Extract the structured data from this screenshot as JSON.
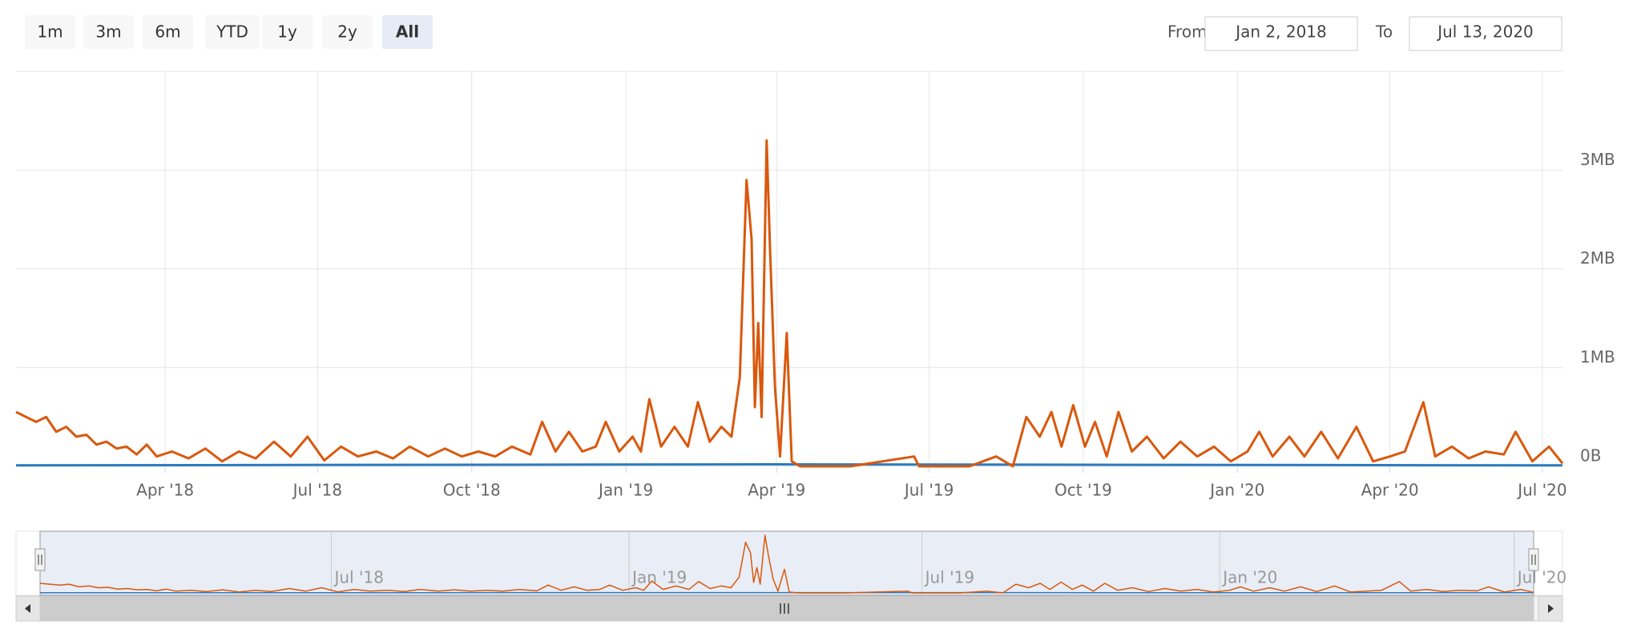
{
  "range_selector": {
    "buttons": [
      "1m",
      "3m",
      "6m",
      "YTD",
      "1y",
      "2y",
      "All"
    ],
    "selected": 6,
    "from_label": "From",
    "from": "Jan 2, 2018",
    "to_label": "To",
    "to": "Jul 13, 2020"
  },
  "chart_data": {
    "type": "line",
    "x": [
      "2018-01-02",
      "2018-01-08",
      "2018-01-14",
      "2018-01-20",
      "2018-01-26",
      "2018-02-01",
      "2018-02-07",
      "2018-02-13",
      "2018-02-19",
      "2018-02-25",
      "2018-03-03",
      "2018-03-09",
      "2018-03-15",
      "2018-03-21",
      "2018-03-27",
      "2018-04-05",
      "2018-04-15",
      "2018-04-25",
      "2018-05-05",
      "2018-05-15",
      "2018-05-25",
      "2018-06-05",
      "2018-06-15",
      "2018-06-25",
      "2018-07-05",
      "2018-07-15",
      "2018-07-25",
      "2018-08-05",
      "2018-08-15",
      "2018-08-25",
      "2018-09-05",
      "2018-09-15",
      "2018-09-25",
      "2018-10-05",
      "2018-10-15",
      "2018-10-25",
      "2018-11-05",
      "2018-11-12",
      "2018-11-20",
      "2018-11-28",
      "2018-12-06",
      "2018-12-14",
      "2018-12-20",
      "2018-12-28",
      "2019-01-05",
      "2019-01-10",
      "2019-01-15",
      "2019-01-22",
      "2019-01-30",
      "2019-02-07",
      "2019-02-13",
      "2019-02-20",
      "2019-02-27",
      "2019-03-05",
      "2019-03-10",
      "2019-03-14",
      "2019-03-17",
      "2019-03-19",
      "2019-03-21",
      "2019-03-23",
      "2019-03-26",
      "2019-03-28",
      "2019-03-31",
      "2019-04-03",
      "2019-04-07",
      "2019-04-10",
      "2019-04-15",
      "2019-05-15",
      "2019-06-22",
      "2019-06-25",
      "2019-07-25",
      "2019-08-10",
      "2019-08-20",
      "2019-08-28",
      "2019-09-05",
      "2019-09-12",
      "2019-09-18",
      "2019-09-25",
      "2019-10-02",
      "2019-10-08",
      "2019-10-15",
      "2019-10-22",
      "2019-10-30",
      "2019-11-08",
      "2019-11-18",
      "2019-11-28",
      "2019-12-08",
      "2019-12-18",
      "2019-12-28",
      "2020-01-07",
      "2020-01-14",
      "2020-01-22",
      "2020-02-01",
      "2020-02-10",
      "2020-02-20",
      "2020-03-01",
      "2020-03-12",
      "2020-03-22",
      "2020-04-01",
      "2020-04-10",
      "2020-04-21",
      "2020-04-28",
      "2020-05-08",
      "2020-05-18",
      "2020-05-28",
      "2020-06-08",
      "2020-06-15",
      "2020-06-25",
      "2020-07-05",
      "2020-07-13"
    ],
    "series": [
      {
        "color": "#d9580d",
        "values": [
          0.55,
          0.5,
          0.45,
          0.5,
          0.35,
          0.4,
          0.3,
          0.32,
          0.22,
          0.25,
          0.18,
          0.2,
          0.12,
          0.22,
          0.1,
          0.15,
          0.08,
          0.18,
          0.05,
          0.15,
          0.08,
          0.25,
          0.1,
          0.3,
          0.06,
          0.2,
          0.1,
          0.15,
          0.08,
          0.2,
          0.1,
          0.18,
          0.1,
          0.15,
          0.1,
          0.2,
          0.12,
          0.45,
          0.15,
          0.35,
          0.15,
          0.2,
          0.45,
          0.15,
          0.3,
          0.15,
          0.68,
          0.2,
          0.4,
          0.2,
          0.65,
          0.25,
          0.4,
          0.3,
          0.9,
          2.9,
          2.3,
          0.6,
          1.45,
          0.5,
          3.3,
          2.2,
          0.8,
          0.1,
          1.35,
          0.05,
          0,
          0,
          0.1,
          0,
          0,
          0.1,
          0,
          0.5,
          0.3,
          0.55,
          0.2,
          0.62,
          0.2,
          0.45,
          0.1,
          0.55,
          0.15,
          0.3,
          0.08,
          0.25,
          0.1,
          0.2,
          0.05,
          0.15,
          0.35,
          0.1,
          0.3,
          0.1,
          0.35,
          0.08,
          0.4,
          0.05,
          0.1,
          0.15,
          0.65,
          0.1,
          0.2,
          0.08,
          0.15,
          0.12,
          0.35,
          0.05,
          0.2,
          0.03
        ]
      },
      {
        "color": "#2b7bbf",
        "x": [
          "2018-01-02",
          "2019-03-26",
          "2020-07-13"
        ],
        "values": [
          0.01,
          0.02,
          0.01
        ]
      }
    ],
    "xlim": [
      "2018-01-02",
      "2020-07-13"
    ],
    "xticks": [
      {
        "value": "2018-04-01",
        "label": "Apr '18"
      },
      {
        "value": "2018-07-01",
        "label": "Jul '18"
      },
      {
        "value": "2018-10-01",
        "label": "Oct '18"
      },
      {
        "value": "2019-01-01",
        "label": "Jan '19"
      },
      {
        "value": "2019-04-01",
        "label": "Apr '19"
      },
      {
        "value": "2019-07-01",
        "label": "Jul '19"
      },
      {
        "value": "2019-10-01",
        "label": "Oct '19"
      },
      {
        "value": "2020-01-01",
        "label": "Jan '20"
      },
      {
        "value": "2020-04-01",
        "label": "Apr '20"
      },
      {
        "value": "2020-07-01",
        "label": "Jul '20"
      }
    ],
    "ylim": [
      0,
      4
    ],
    "yticks": [
      {
        "value": 0,
        "label": "0B"
      },
      {
        "value": 1,
        "label": "1MB"
      },
      {
        "value": 2,
        "label": "2MB"
      },
      {
        "value": 3,
        "label": "3MB"
      }
    ],
    "grid": true,
    "navigator": {
      "xticks": [
        {
          "value": "2018-07-01",
          "label": "Jul '18"
        },
        {
          "value": "2019-01-01",
          "label": "Jan '19"
        },
        {
          "value": "2019-07-01",
          "label": "Jul '19"
        },
        {
          "value": "2020-01-01",
          "label": "Jan '20"
        },
        {
          "value": "2020-07-01",
          "label": "Jul '20"
        }
      ]
    }
  }
}
